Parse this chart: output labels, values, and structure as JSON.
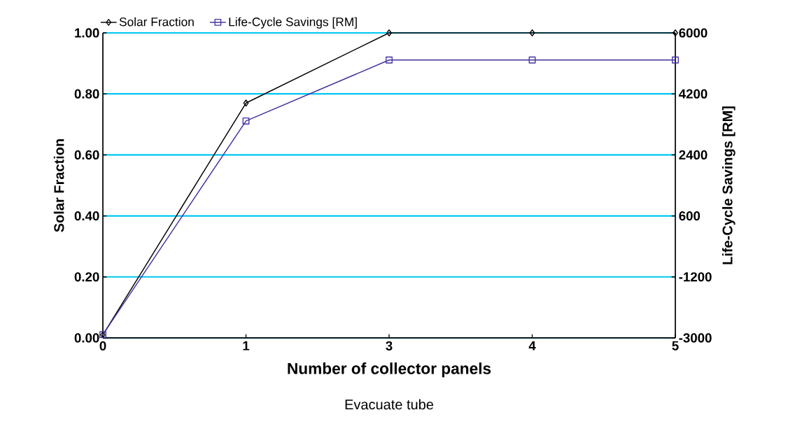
{
  "chart_data": {
    "type": "line",
    "xlabel": "Number of collector panels",
    "ylabel": "Solar Fraction",
    "y2label": "Life-Cycle Savings [RM]",
    "annotations": [
      "Evacuate tube"
    ],
    "categories": [
      "0",
      "1",
      "3",
      "4",
      "5"
    ],
    "series": [
      {
        "name": "Solar Fraction",
        "color": "#000000",
        "marker": "diamond",
        "values": [
          0.01,
          0.77,
          1.0,
          1.0,
          1.0
        ]
      },
      {
        "name": "Life-Cycle Savings [RM]",
        "color": "#4030a0",
        "marker": "square",
        "axis": "y2",
        "values": [
          -2900,
          3400,
          5200,
          5200,
          5200
        ]
      }
    ],
    "ylim": [
      0,
      1
    ],
    "yticks": [
      {
        "value": 0,
        "label": "0.00"
      },
      {
        "value": 0.2,
        "label": "0.20"
      },
      {
        "value": 0.4,
        "label": "0.40"
      },
      {
        "value": 0.6,
        "label": "0.60"
      },
      {
        "value": 0.8,
        "label": "0.80"
      },
      {
        "value": 1,
        "label": "1.00"
      }
    ],
    "y2lim": [
      -3000,
      6000
    ],
    "y2ticks": [
      -3000,
      -1200,
      600,
      2400,
      4200,
      6000
    ],
    "grid": "y",
    "legend": "top",
    "line_style": "solid"
  }
}
